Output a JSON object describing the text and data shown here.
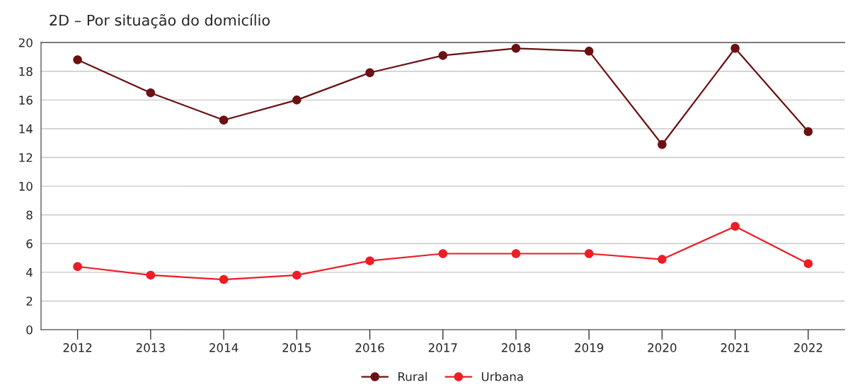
{
  "chart_data": {
    "type": "line",
    "title": "2D – Por situação do domicílio",
    "categories": [
      "2012",
      "2013",
      "2014",
      "2015",
      "2016",
      "2017",
      "2018",
      "2019",
      "2020",
      "2021",
      "2022"
    ],
    "series": [
      {
        "name": "Rural",
        "color": "#6b1013",
        "values": [
          18.8,
          16.5,
          14.6,
          16.0,
          17.9,
          19.1,
          19.6,
          19.4,
          12.9,
          19.6,
          13.8
        ]
      },
      {
        "name": "Urbana",
        "color": "#ee1c25",
        "values": [
          4.4,
          3.8,
          3.5,
          3.8,
          4.8,
          5.3,
          5.3,
          5.3,
          4.9,
          7.2,
          4.6
        ]
      }
    ],
    "ylim": [
      0,
      20
    ],
    "yticks": [
      0,
      2,
      4,
      6,
      8,
      10,
      12,
      14,
      16,
      18,
      20
    ],
    "grid": "y",
    "legend": "bottom",
    "marker": "circle",
    "line_style": "solid"
  }
}
